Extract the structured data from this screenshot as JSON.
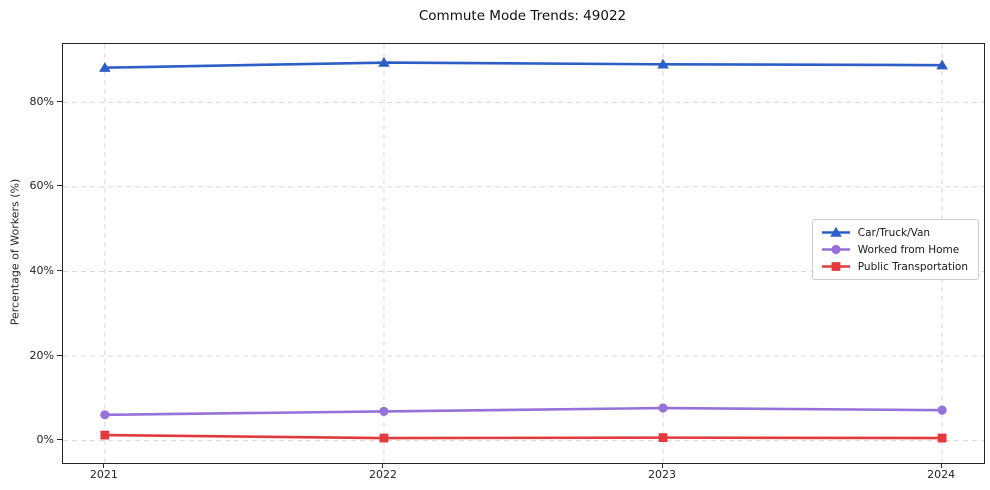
{
  "figure": {
    "title": "Commute Mode Trends: 49022"
  },
  "chart_data": {
    "type": "line",
    "title": "Commute Mode Trends: 49022",
    "xlabel": "",
    "ylabel": "Percentage of Workers (%)",
    "categories": [
      "2021",
      "2022",
      "2023",
      "2024"
    ],
    "series": [
      {
        "name": "Car/Truck/Van",
        "marker": "triangle",
        "color": "#2d5ec6",
        "values": [
          88.2,
          89.4,
          89.0,
          88.8
        ]
      },
      {
        "name": "Worked from Home",
        "marker": "circle",
        "color": "#9671d9",
        "values": [
          6.1,
          6.9,
          7.7,
          7.2
        ]
      },
      {
        "name": "Public Transportation",
        "marker": "square",
        "color": "#e33b3d",
        "values": [
          1.3,
          0.6,
          0.7,
          0.6
        ]
      }
    ],
    "yticks": [
      {
        "value": 0,
        "label": "0%"
      },
      {
        "value": 20,
        "label": "20%"
      },
      {
        "value": 40,
        "label": "40%"
      },
      {
        "value": 60,
        "label": "60%"
      },
      {
        "value": 80,
        "label": "80%"
      }
    ],
    "ylim": [
      -5.3,
      93.8
    ],
    "grid": true,
    "legend_position": "center right"
  },
  "colors": {
    "grid": "#d8d8d8",
    "spine": "#262626",
    "text": "#262626",
    "legend_border": "#cccccc",
    "background": "#ffffff"
  }
}
